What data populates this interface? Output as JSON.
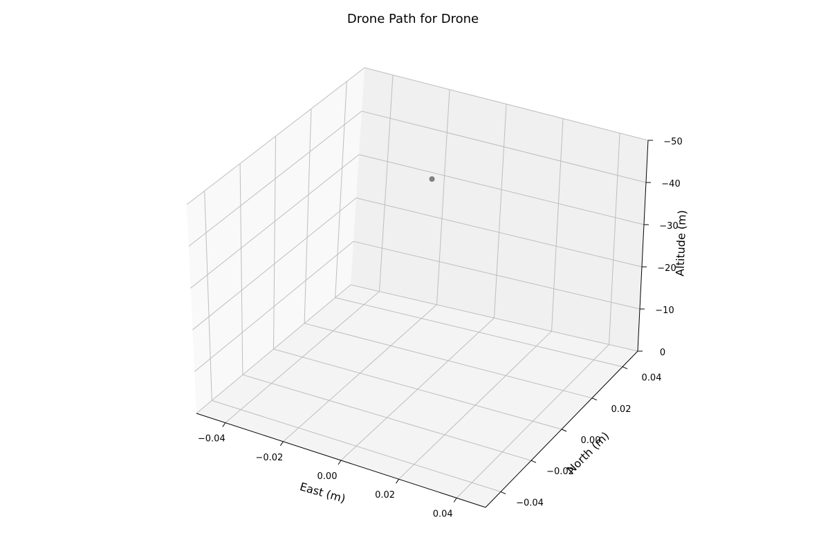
{
  "chart_data": {
    "type": "scatter",
    "title": "Drone Path for Drone",
    "xlabel": "East (m)",
    "ylabel": "North (m)",
    "zlabel": "Altitude (m)",
    "grid": true,
    "x_ticks": [
      "−0.04",
      "−0.02",
      "0.00",
      "0.02",
      "0.04"
    ],
    "y_ticks": [
      "−0.04",
      "−0.02",
      "0.00",
      "0.02",
      "0.04"
    ],
    "z_ticks": [
      "0",
      "−10",
      "−20",
      "−30",
      "−40",
      "−50"
    ],
    "points": [
      {
        "x": 0.0,
        "y": 0.0,
        "z": -50
      }
    ],
    "point_color": "#808080",
    "pane_colors": {
      "floor": "#f4f4f4",
      "back_left": "#f9f9f9",
      "back_right": "#f0f0f0"
    },
    "grid_color": "#bdbdbd"
  }
}
